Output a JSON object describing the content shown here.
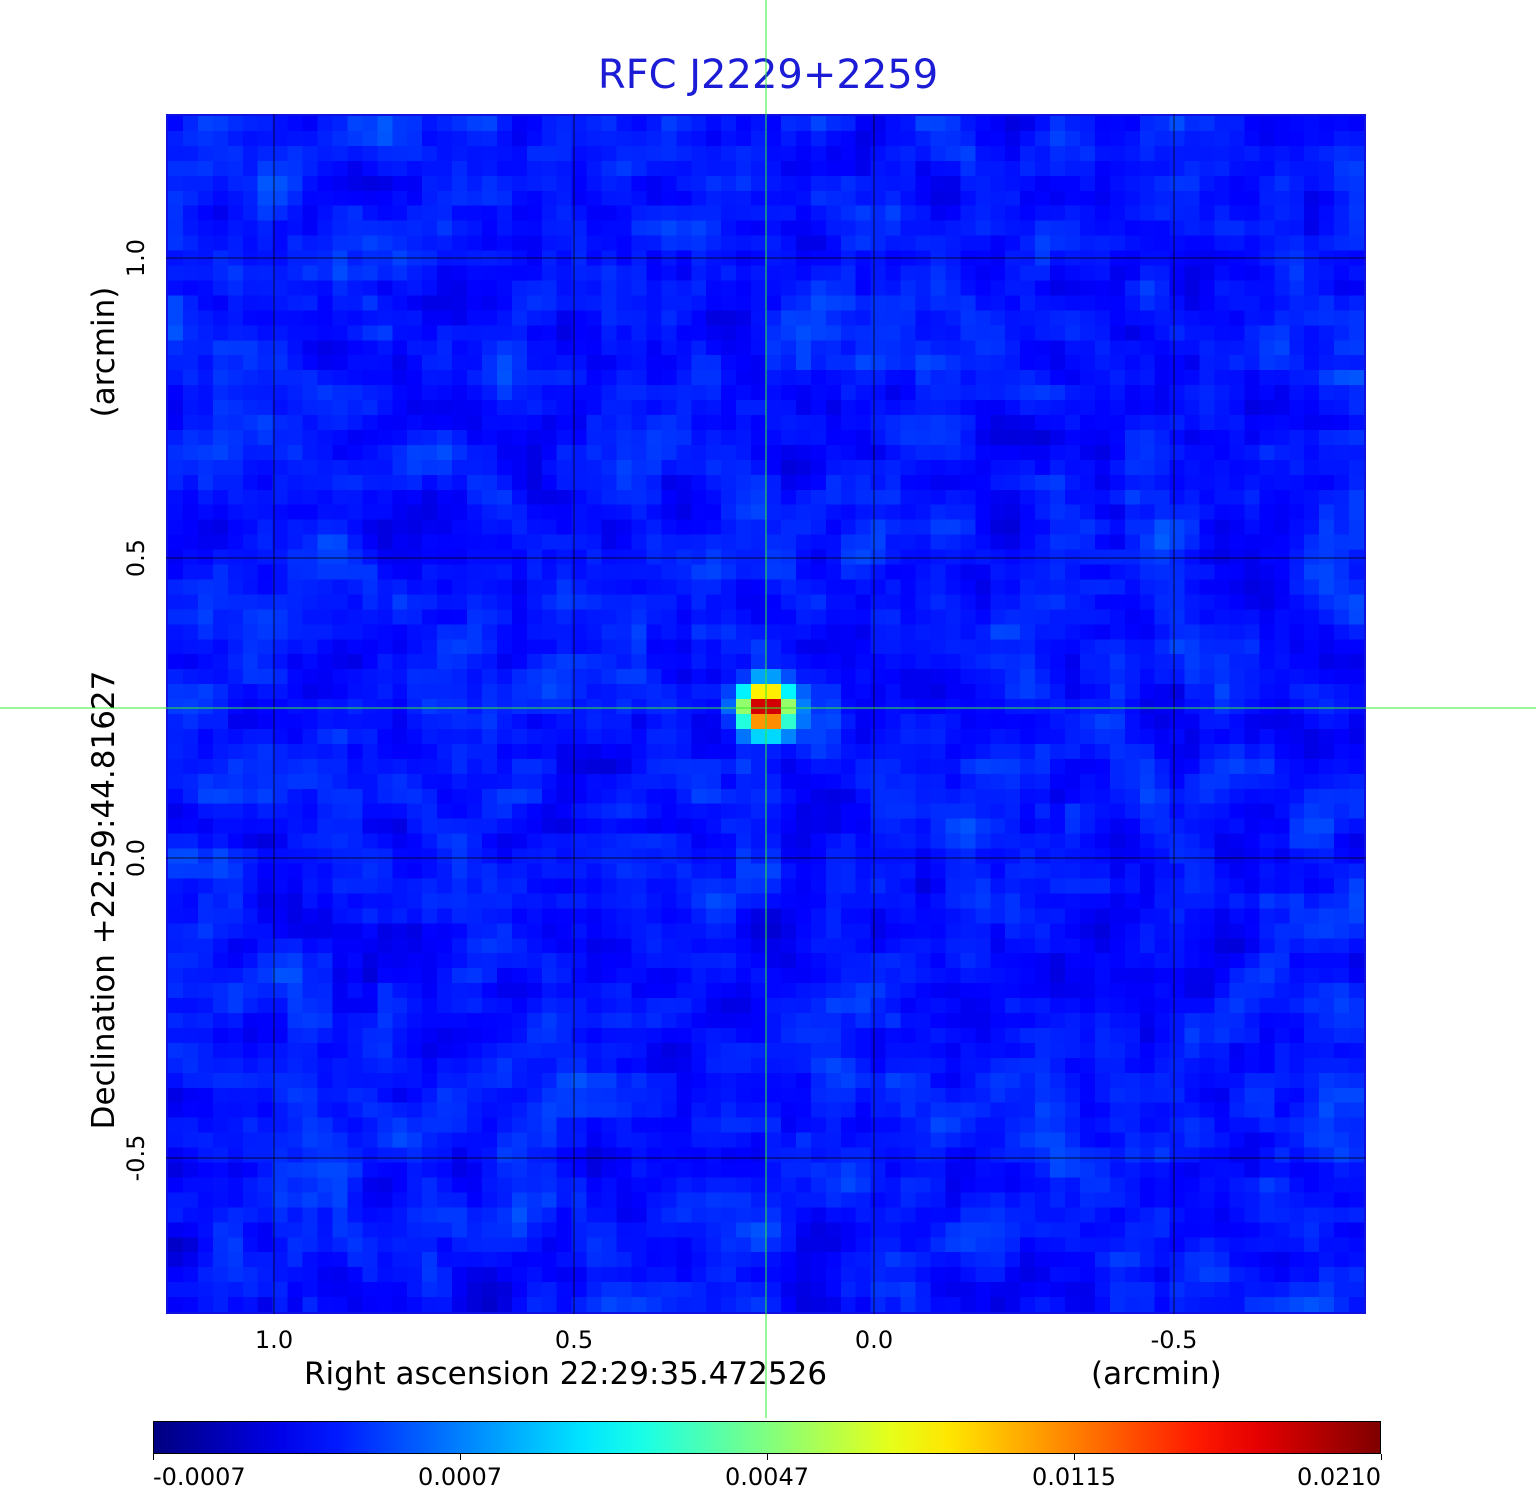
{
  "chart_data": {
    "type": "heatmap",
    "title": "RFC J2229+2259",
    "xlabel": "Right ascension  22:29:35.472526",
    "xunit": "(arcmin)",
    "ylabel": "Declination  +22:59:44.81627",
    "yunit": "(arcmin)",
    "x_ticks": [
      1.0,
      0.5,
      0.0,
      -0.5
    ],
    "x_tick_labels": [
      "1.0",
      "0.5",
      "0.0",
      "-0.5"
    ],
    "y_ticks": [
      1.0,
      0.5,
      0.0,
      -0.5
    ],
    "y_tick_labels": [
      "1.0",
      "0.5",
      "0.0",
      "-0.5"
    ],
    "xlim": [
      1.18,
      -0.82
    ],
    "ylim": [
      -0.76,
      1.24
    ],
    "x_inverted": true,
    "grid": true,
    "colormap": "jet",
    "colorbar_ticks": [
      -0.0007,
      0.0007,
      0.0047,
      0.0115,
      0.021
    ],
    "colorbar_tick_labels": [
      "-0.0007",
      "0.0007",
      "0.0047",
      "0.0115",
      "0.0210"
    ],
    "colorbar_range": [
      -0.0007,
      0.021
    ],
    "source": {
      "x": 0.18,
      "y": 0.25,
      "peak": 0.021
    },
    "crosshair": {
      "x": 0.18,
      "y": 0.25,
      "color": "#33ee33"
    },
    "colors": {
      "title": "#1c1cd6",
      "frame": "#1010e0",
      "grid": "#000000"
    }
  }
}
